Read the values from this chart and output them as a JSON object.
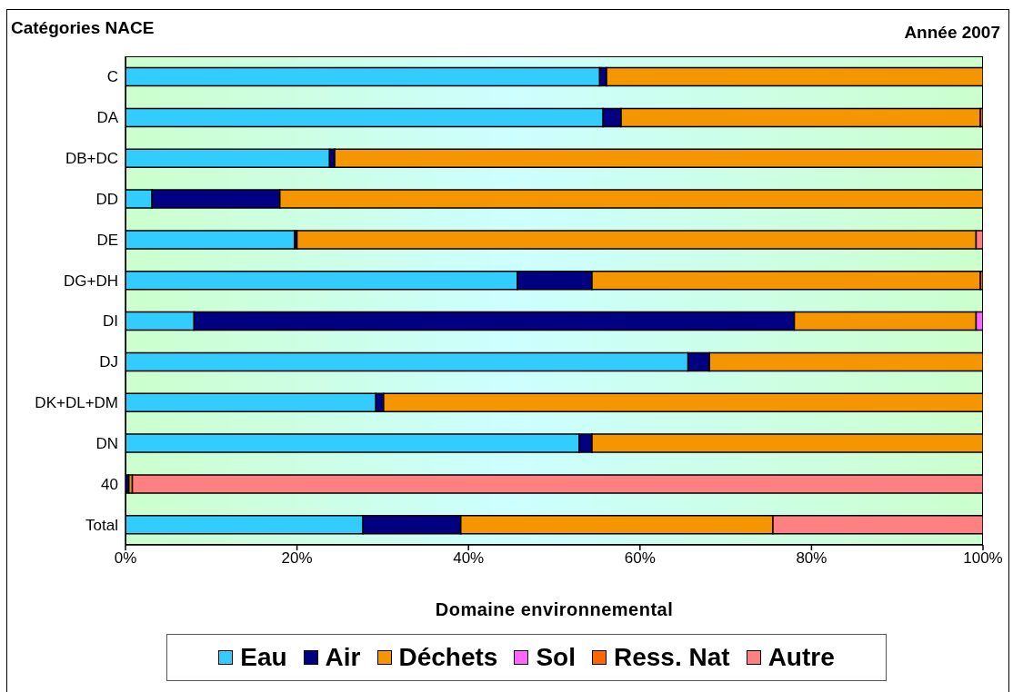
{
  "chart_data": {
    "type": "bar",
    "orientation": "horizontal",
    "stacked": true,
    "title": "Année 2007",
    "ylabel": "Catégories NACE",
    "xlabel": "Domaine environnemental",
    "categories": [
      "C",
      "DA",
      "DB+DC",
      "DD",
      "DE",
      "DG+DH",
      "DI",
      "DJ",
      "DK+DL+DM",
      "DN",
      "40",
      "Total"
    ],
    "series": [
      {
        "name": "Eau",
        "color": "#33ccff",
        "values": [
          55.3,
          55.7,
          23.8,
          3.1,
          19.7,
          45.7,
          8.0,
          65.6,
          29.2,
          52.9,
          null,
          27.7
        ]
      },
      {
        "name": "Air",
        "color": "#000080",
        "values": [
          0.8,
          2.1,
          0.6,
          14.9,
          0.3,
          8.7,
          70.0,
          2.5,
          0.9,
          1.5,
          0.4,
          11.4
        ]
      },
      {
        "name": "Déchets",
        "color": "#f59500",
        "values": [
          43.9,
          41.9,
          75.6,
          82.0,
          79.2,
          45.3,
          21.2,
          31.9,
          69.9,
          45.6,
          0.4,
          36.4
        ]
      },
      {
        "name": "Sol",
        "color": "#ff66ff",
        "values": [
          null,
          null,
          null,
          null,
          null,
          null,
          0.8,
          null,
          null,
          null,
          null,
          null
        ]
      },
      {
        "name": "Ress. Nat",
        "color": "#ff6600",
        "values": [
          null,
          0.3,
          null,
          null,
          null,
          0.3,
          null,
          null,
          null,
          null,
          null,
          null
        ]
      },
      {
        "name": "Autre",
        "color": "#ff8080",
        "values": [
          null,
          null,
          null,
          null,
          0.8,
          null,
          null,
          null,
          null,
          null,
          99.2,
          24.5
        ]
      }
    ],
    "xlim": [
      0,
      100
    ],
    "xticks": [
      {
        "value": 0,
        "label": "0%"
      },
      {
        "value": 20,
        "label": "20%"
      },
      {
        "value": 40,
        "label": "40%"
      },
      {
        "value": 60,
        "label": "60%"
      },
      {
        "value": 80,
        "label": "80%"
      },
      {
        "value": 100,
        "label": "100%"
      }
    ],
    "legend": "bottom"
  }
}
